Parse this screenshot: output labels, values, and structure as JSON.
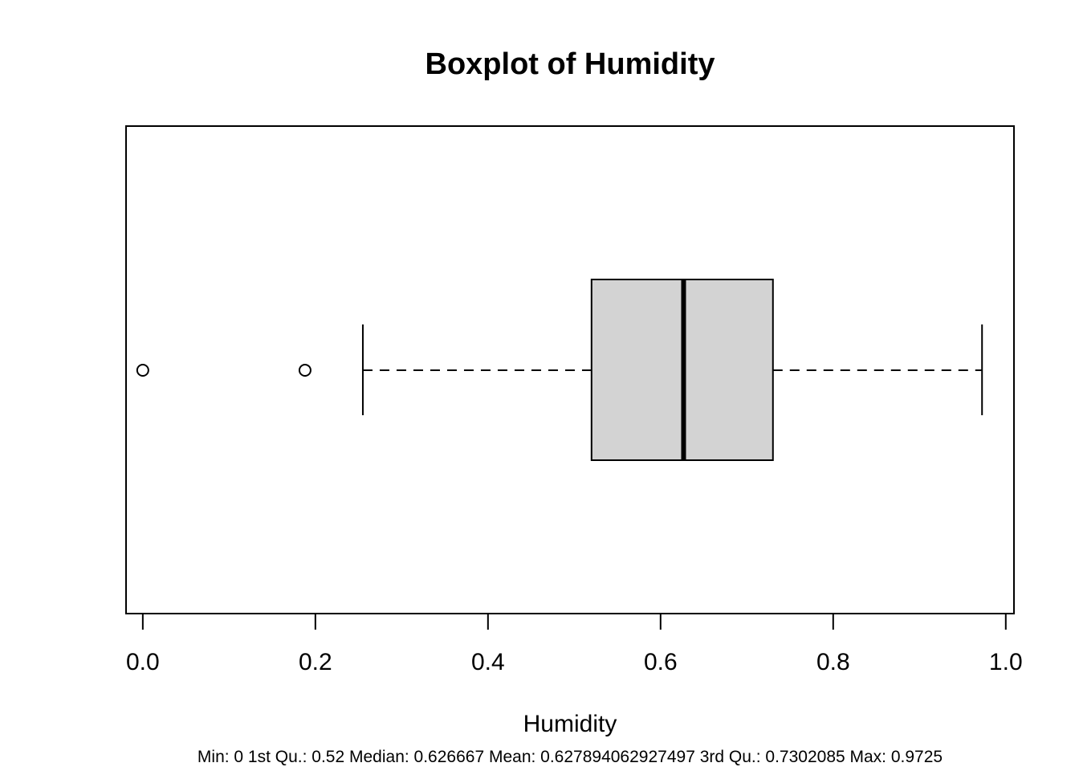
{
  "chart_data": {
    "type": "boxplot",
    "orientation": "horizontal",
    "title": "Boxplot of Humidity",
    "xlabel": "Humidity",
    "subtitle": "Min: 0 1st Qu.: 0.52 Median: 0.626667 Mean: 0.627894062927497 3rd Qu.: 0.7302085 Max: 0.9725",
    "xlim": [
      -0.0194,
      1.0095
    ],
    "ticks": [
      0.0,
      0.2,
      0.4,
      0.6,
      0.8,
      1.0
    ],
    "tick_labels": [
      "0.0",
      "0.2",
      "0.4",
      "0.6",
      "0.8",
      "1.0"
    ],
    "stats": {
      "lower_whisker": 0.255,
      "q1": 0.52,
      "median": 0.626667,
      "q3": 0.7302085,
      "upper_whisker": 0.9725
    },
    "outliers": [
      0.0,
      0.188
    ],
    "box_fill": "#d3d3d3",
    "whisker_style": "dashed",
    "grid": false
  }
}
